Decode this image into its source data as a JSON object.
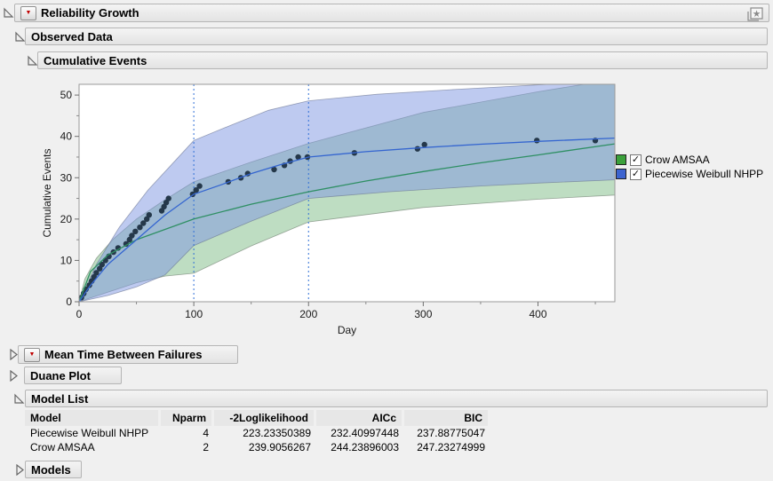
{
  "window": {
    "title": "Reliability Growth"
  },
  "icons": {
    "red_triangle": "▼",
    "check": "✓",
    "star": "★"
  },
  "outline": {
    "reliability_growth": "Reliability Growth",
    "observed_data": "Observed Data",
    "cumulative_events": "Cumulative Events",
    "mtbf": "Mean Time Between Failures",
    "duane": "Duane Plot",
    "model_list": "Model List",
    "models": "Models"
  },
  "chart_data": {
    "type": "line",
    "xlabel": "Day",
    "ylabel": "Cumulative Events",
    "xlim": [
      0,
      467
    ],
    "ylim": [
      0,
      52.6
    ],
    "x_ticks": [
      0,
      100,
      200,
      300,
      400
    ],
    "x_minor_ticks": [
      50,
      150,
      250,
      350,
      450
    ],
    "y_ticks": [
      0,
      10,
      20,
      30,
      40,
      50
    ],
    "y_minor_ticks": [
      5,
      15,
      25,
      35,
      45
    ],
    "grid": false,
    "legend_position": "top-right",
    "phase_boundary_days": [
      100,
      200
    ],
    "phase_line_color": "#2f6fd6",
    "legend": [
      {
        "label": "Crow AMSAA",
        "color": "#3ba13b",
        "checked": true
      },
      {
        "label": "Piecewise Weibull NHPP",
        "color": "#3d64cf",
        "checked": true
      }
    ],
    "series": [
      {
        "name": "Observed cumulative events",
        "type": "scatter",
        "color": "#25384a",
        "points": [
          [
            2,
            1
          ],
          [
            4,
            2
          ],
          [
            6,
            3
          ],
          [
            9,
            4
          ],
          [
            11,
            5
          ],
          [
            13,
            6
          ],
          [
            15,
            7
          ],
          [
            18,
            8
          ],
          [
            20,
            9
          ],
          [
            23,
            10
          ],
          [
            26,
            11
          ],
          [
            30,
            12
          ],
          [
            34,
            13
          ],
          [
            41,
            14
          ],
          [
            44,
            15
          ],
          [
            46,
            16
          ],
          [
            49,
            17
          ],
          [
            53,
            18
          ],
          [
            56,
            19
          ],
          [
            59,
            20
          ],
          [
            61,
            21
          ],
          [
            72,
            22
          ],
          [
            74,
            23
          ],
          [
            76,
            24
          ],
          [
            78,
            25
          ],
          [
            99,
            26
          ],
          [
            102,
            27
          ],
          [
            105,
            28
          ],
          [
            130,
            29
          ],
          [
            141,
            30
          ],
          [
            147,
            31
          ],
          [
            170,
            32
          ],
          [
            179,
            33
          ],
          [
            184,
            34
          ],
          [
            191,
            35
          ],
          [
            199,
            35
          ],
          [
            240,
            36
          ],
          [
            295,
            37
          ],
          [
            301,
            38
          ],
          [
            399,
            39
          ],
          [
            450,
            39
          ]
        ]
      },
      {
        "name": "Crow AMSAA fit",
        "type": "line",
        "color": "#2e8f63",
        "points": [
          [
            0,
            0
          ],
          [
            10,
            7.3
          ],
          [
            25,
            11.3
          ],
          [
            50,
            15.0
          ],
          [
            100,
            20.0
          ],
          [
            150,
            23.6
          ],
          [
            200,
            26.6
          ],
          [
            250,
            29.2
          ],
          [
            300,
            31.5
          ],
          [
            350,
            33.6
          ],
          [
            400,
            35.5
          ],
          [
            467,
            38.2
          ]
        ]
      },
      {
        "name": "Piecewise Weibull NHPP fit",
        "type": "line",
        "color": "#3465d0",
        "points": [
          [
            0,
            0
          ],
          [
            10,
            4
          ],
          [
            25,
            9
          ],
          [
            50,
            15
          ],
          [
            75,
            21
          ],
          [
            100,
            26
          ],
          [
            125,
            28.4
          ],
          [
            150,
            31
          ],
          [
            175,
            33.1
          ],
          [
            200,
            35
          ],
          [
            250,
            36.3
          ],
          [
            300,
            37.3
          ],
          [
            350,
            38.1
          ],
          [
            400,
            38.8
          ],
          [
            467,
            39.6
          ]
        ]
      }
    ],
    "bands": [
      {
        "name": "Crow AMSAA 95% CI",
        "fill": "rgba(110,180,120,0.45)",
        "stroke": "rgba(100,115,100,0.6)",
        "upper": [
          [
            0,
            0
          ],
          [
            5,
            5.5
          ],
          [
            15,
            10.5
          ],
          [
            30,
            15.2
          ],
          [
            50,
            20
          ],
          [
            75,
            24.7
          ],
          [
            100,
            29
          ],
          [
            150,
            33.8
          ],
          [
            200,
            38.3
          ],
          [
            300,
            45.8
          ],
          [
            400,
            50.8
          ],
          [
            440,
            52.8
          ],
          [
            467,
            54.5
          ]
        ],
        "lower": [
          [
            0,
            0
          ],
          [
            25,
            2.3
          ],
          [
            50,
            4.6
          ],
          [
            75,
            6.2
          ],
          [
            100,
            6.9
          ],
          [
            150,
            13.5
          ],
          [
            200,
            19.3
          ],
          [
            300,
            22.8
          ],
          [
            400,
            24.8
          ],
          [
            467,
            25.8
          ]
        ]
      },
      {
        "name": "Piecewise Weibull NHPP 95% CI",
        "fill": "rgba(125,150,225,0.5)",
        "stroke": "rgba(100,110,140,0.6)",
        "upper": [
          [
            0,
            0
          ],
          [
            15,
            9
          ],
          [
            35,
            18
          ],
          [
            60,
            27
          ],
          [
            85,
            34.5
          ],
          [
            100,
            39
          ],
          [
            135,
            43
          ],
          [
            165,
            46.3
          ],
          [
            200,
            48.6
          ],
          [
            260,
            50.2
          ],
          [
            330,
            51.4
          ],
          [
            409,
            52.6
          ],
          [
            467,
            53.8
          ]
        ],
        "lower": [
          [
            0,
            0
          ],
          [
            25,
            1.5
          ],
          [
            50,
            3.6
          ],
          [
            75,
            6.5
          ],
          [
            100,
            13.6
          ],
          [
            150,
            19.5
          ],
          [
            200,
            25
          ],
          [
            270,
            26.6
          ],
          [
            350,
            28
          ],
          [
            400,
            28.7
          ],
          [
            467,
            29.5
          ]
        ]
      }
    ]
  },
  "model_list": {
    "columns": [
      "Model",
      "Nparm",
      "-2Loglikelihood",
      "AICc",
      "BIC"
    ],
    "rows": [
      [
        "Piecewise Weibull NHPP",
        "4",
        "223.23350389",
        "232.40997448",
        "237.88775047"
      ],
      [
        "Crow AMSAA",
        "2",
        "239.9056267",
        "244.23896003",
        "247.23274999"
      ]
    ]
  }
}
